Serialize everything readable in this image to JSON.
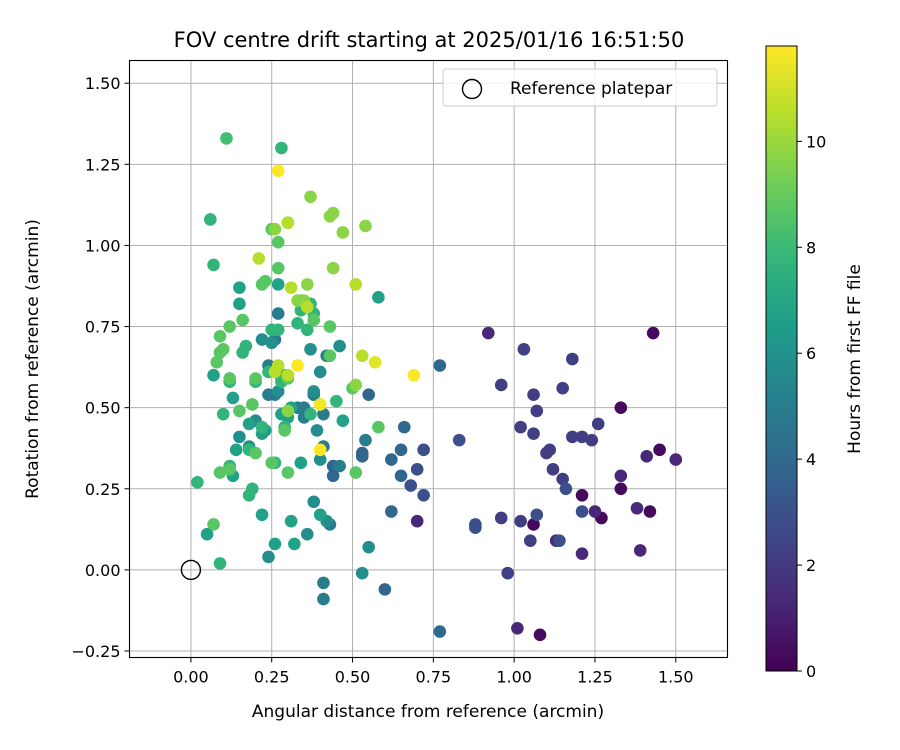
{
  "chart_data": {
    "type": "scatter",
    "title": "FOV centre drift starting at 2025/01/16 16:51:50",
    "xlabel": "Angular distance from reference (arcmin)",
    "ylabel": "Rotation from reference (arcmin)",
    "xlim": [
      -0.19,
      1.66
    ],
    "ylim": [
      -0.27,
      1.57
    ],
    "xticks": [
      "0.00",
      "0.25",
      "0.50",
      "0.75",
      "1.00",
      "1.25",
      "1.50"
    ],
    "yticks": [
      "−0.25",
      "0.00",
      "0.25",
      "0.50",
      "0.75",
      "1.00",
      "1.25",
      "1.50"
    ],
    "grid": true,
    "legend": {
      "position": "top-right",
      "label": "Reference platepar"
    },
    "reference_point": {
      "x": 0.0,
      "y": 0.0
    },
    "colorbar": {
      "label": "Hours from first FF file",
      "colormap": "viridis",
      "range": [
        0,
        11.8
      ],
      "ticks": [
        "0",
        "2",
        "4",
        "6",
        "8",
        "10"
      ]
    },
    "colors": [
      "#440154",
      "#482878",
      "#3e4989",
      "#31688e",
      "#26828e",
      "#1f9e89",
      "#35b779",
      "#6ece58",
      "#b5de2b",
      "#fde725"
    ],
    "points": [
      [
        1.45,
        0.37,
        0.3
      ],
      [
        1.43,
        0.73,
        0.3
      ],
      [
        1.42,
        0.18,
        0.3
      ],
      [
        1.33,
        0.5,
        0.3
      ],
      [
        1.33,
        0.25,
        0.3
      ],
      [
        1.27,
        0.16,
        0.3
      ],
      [
        1.21,
        0.23,
        0.3
      ],
      [
        1.06,
        0.14,
        0.3
      ],
      [
        1.08,
        -0.2,
        0.3
      ],
      [
        1.5,
        0.34,
        1.3
      ],
      [
        1.41,
        0.35,
        1.3
      ],
      [
        1.39,
        0.06,
        1.3
      ],
      [
        1.38,
        0.19,
        1.3
      ],
      [
        1.33,
        0.29,
        1.3
      ],
      [
        1.25,
        0.18,
        1.3
      ],
      [
        1.21,
        0.05,
        1.3
      ],
      [
        1.13,
        0.09,
        1.3
      ],
      [
        1.01,
        -0.18,
        1.3
      ],
      [
        0.92,
        0.73,
        1.3
      ],
      [
        0.7,
        0.15,
        1.3
      ],
      [
        1.26,
        0.45,
        2.2
      ],
      [
        1.24,
        0.4,
        2.2
      ],
      [
        1.21,
        0.41,
        2.2
      ],
      [
        1.18,
        0.41,
        2.2
      ],
      [
        1.18,
        0.65,
        2.2
      ],
      [
        1.15,
        0.56,
        2.2
      ],
      [
        1.15,
        0.28,
        2.2
      ],
      [
        1.12,
        0.31,
        2.2
      ],
      [
        1.1,
        0.36,
        2.2
      ],
      [
        1.11,
        0.37,
        2.2
      ],
      [
        1.07,
        0.49,
        2.2
      ],
      [
        1.06,
        0.54,
        2.2
      ],
      [
        1.06,
        0.42,
        2.2
      ],
      [
        1.03,
        0.68,
        2.2
      ],
      [
        1.02,
        0.44,
        2.2
      ],
      [
        1.02,
        0.15,
        2.2
      ],
      [
        0.96,
        0.57,
        2.2
      ],
      [
        0.96,
        0.16,
        2.2
      ],
      [
        0.98,
        -0.01,
        2.2
      ],
      [
        1.05,
        0.09,
        2.2
      ],
      [
        1.21,
        0.18,
        2.9
      ],
      [
        1.16,
        0.25,
        2.9
      ],
      [
        1.14,
        0.09,
        2.9
      ],
      [
        1.07,
        0.17,
        2.9
      ],
      [
        0.88,
        0.14,
        2.9
      ],
      [
        0.88,
        0.13,
        2.9
      ],
      [
        0.83,
        0.4,
        2.9
      ],
      [
        0.72,
        0.23,
        2.9
      ],
      [
        0.72,
        0.37,
        2.9
      ],
      [
        0.7,
        0.31,
        2.9
      ],
      [
        0.68,
        0.26,
        2.9
      ],
      [
        0.77,
        0.63,
        3.9
      ],
      [
        0.66,
        0.44,
        3.9
      ],
      [
        0.65,
        0.37,
        3.9
      ],
      [
        0.65,
        0.29,
        3.9
      ],
      [
        0.62,
        0.34,
        3.9
      ],
      [
        0.62,
        0.18,
        3.9
      ],
      [
        0.55,
        0.54,
        3.9
      ],
      [
        0.53,
        0.36,
        3.9
      ],
      [
        0.53,
        0.35,
        3.9
      ],
      [
        0.44,
        0.29,
        3.9
      ],
      [
        0.44,
        0.32,
        3.9
      ],
      [
        0.77,
        -0.19,
        3.9
      ],
      [
        0.6,
        -0.06,
        3.9
      ],
      [
        0.54,
        0.4,
        4.9
      ],
      [
        0.46,
        0.32,
        4.9
      ],
      [
        0.41,
        0.38,
        4.9
      ],
      [
        0.42,
        0.66,
        4.9
      ],
      [
        0.41,
        0.48,
        4.9
      ],
      [
        0.38,
        0.54,
        4.9
      ],
      [
        0.35,
        0.5,
        4.9
      ],
      [
        0.35,
        0.47,
        4.9
      ],
      [
        0.33,
        0.5,
        4.9
      ],
      [
        0.27,
        0.79,
        4.9
      ],
      [
        0.26,
        0.71,
        4.9
      ],
      [
        0.26,
        0.54,
        4.9
      ],
      [
        0.24,
        0.54,
        4.9
      ],
      [
        0.24,
        0.63,
        4.9
      ],
      [
        0.41,
        -0.04,
        4.9
      ],
      [
        0.41,
        -0.09,
        4.9
      ],
      [
        0.43,
        0.14,
        4.9
      ],
      [
        0.46,
        0.69,
        5.8
      ],
      [
        0.4,
        0.61,
        5.8
      ],
      [
        0.37,
        0.68,
        5.8
      ],
      [
        0.38,
        0.55,
        5.8
      ],
      [
        0.39,
        0.43,
        5.8
      ],
      [
        0.4,
        0.34,
        5.8
      ],
      [
        0.28,
        0.59,
        5.8
      ],
      [
        0.27,
        0.55,
        5.8
      ],
      [
        0.25,
        0.7,
        5.8
      ],
      [
        0.22,
        0.71,
        5.8
      ],
      [
        0.2,
        0.46,
        5.8
      ],
      [
        0.18,
        0.38,
        5.8
      ],
      [
        0.15,
        0.41,
        5.8
      ],
      [
        0.38,
        0.21,
        5.8
      ],
      [
        0.36,
        0.11,
        5.8
      ],
      [
        0.42,
        0.15,
        5.8
      ],
      [
        0.24,
        0.04,
        5.8
      ],
      [
        0.53,
        -0.01,
        5.8
      ],
      [
        0.55,
        0.07,
        5.8
      ],
      [
        0.58,
        0.84,
        6.7
      ],
      [
        0.47,
        0.46,
        6.7
      ],
      [
        0.4,
        0.17,
        6.7
      ],
      [
        0.34,
        0.33,
        6.7
      ],
      [
        0.31,
        0.5,
        6.7
      ],
      [
        0.3,
        0.47,
        6.7
      ],
      [
        0.28,
        0.48,
        6.7
      ],
      [
        0.27,
        0.88,
        6.7
      ],
      [
        0.23,
        0.43,
        6.7
      ],
      [
        0.22,
        0.42,
        6.7
      ],
      [
        0.18,
        0.45,
        6.7
      ],
      [
        0.15,
        0.87,
        6.7
      ],
      [
        0.15,
        0.82,
        6.7
      ],
      [
        0.14,
        0.37,
        6.7
      ],
      [
        0.13,
        0.53,
        6.7
      ],
      [
        0.13,
        0.29,
        6.7
      ],
      [
        0.07,
        0.6,
        6.7
      ],
      [
        0.05,
        0.11,
        6.7
      ],
      [
        0.26,
        0.08,
        6.7
      ],
      [
        0.22,
        0.17,
        6.7
      ],
      [
        0.31,
        0.15,
        6.7
      ],
      [
        0.32,
        0.08,
        6.7
      ],
      [
        0.45,
        0.52,
        7.7
      ],
      [
        0.38,
        0.79,
        7.7
      ],
      [
        0.37,
        0.82,
        7.7
      ],
      [
        0.37,
        0.48,
        7.7
      ],
      [
        0.36,
        0.74,
        7.7
      ],
      [
        0.34,
        0.8,
        7.7
      ],
      [
        0.33,
        0.76,
        7.7
      ],
      [
        0.29,
        0.6,
        7.7
      ],
      [
        0.29,
        0.44,
        7.7
      ],
      [
        0.28,
        1.3,
        7.7
      ],
      [
        0.28,
        0.58,
        7.7
      ],
      [
        0.27,
        0.74,
        7.7
      ],
      [
        0.26,
        0.33,
        7.7
      ],
      [
        0.25,
        0.74,
        7.7
      ],
      [
        0.24,
        0.61,
        7.7
      ],
      [
        0.22,
        0.44,
        7.7
      ],
      [
        0.2,
        0.58,
        7.7
      ],
      [
        0.19,
        0.25,
        7.7
      ],
      [
        0.18,
        0.37,
        7.7
      ],
      [
        0.18,
        0.23,
        7.7
      ],
      [
        0.17,
        0.69,
        7.7
      ],
      [
        0.16,
        0.67,
        7.7
      ],
      [
        0.12,
        0.58,
        7.7
      ],
      [
        0.12,
        0.32,
        7.7
      ],
      [
        0.1,
        0.48,
        7.7
      ],
      [
        0.07,
        0.94,
        7.7
      ],
      [
        0.06,
        1.08,
        7.7
      ],
      [
        0.02,
        0.27,
        7.7
      ],
      [
        0.09,
        0.02,
        7.7
      ],
      [
        0.11,
        1.33,
        8.2
      ],
      [
        0.5,
        0.56,
        8.7
      ],
      [
        0.43,
        0.75,
        8.7
      ],
      [
        0.43,
        0.66,
        8.7
      ],
      [
        0.4,
        0.51,
        8.7
      ],
      [
        0.38,
        0.77,
        8.7
      ],
      [
        0.34,
        0.83,
        8.7
      ],
      [
        0.3,
        1.07,
        8.7
      ],
      [
        0.3,
        0.59,
        8.7
      ],
      [
        0.29,
        0.43,
        8.7
      ],
      [
        0.27,
        0.93,
        8.7
      ],
      [
        0.27,
        1.01,
        8.7
      ],
      [
        0.25,
        1.05,
        8.7
      ],
      [
        0.25,
        0.33,
        8.7
      ],
      [
        0.22,
        0.88,
        8.7
      ],
      [
        0.2,
        0.59,
        8.7
      ],
      [
        0.2,
        0.36,
        8.7
      ],
      [
        0.19,
        0.51,
        8.7
      ],
      [
        0.16,
        0.77,
        8.7
      ],
      [
        0.15,
        0.49,
        8.7
      ],
      [
        0.12,
        0.75,
        8.7
      ],
      [
        0.12,
        0.59,
        8.7
      ],
      [
        0.1,
        0.68,
        8.7
      ],
      [
        0.09,
        0.72,
        8.7
      ],
      [
        0.08,
        0.64,
        8.7
      ],
      [
        0.09,
        0.67,
        8.7
      ],
      [
        0.09,
        0.3,
        8.7
      ],
      [
        0.07,
        0.14,
        8.7
      ],
      [
        0.58,
        0.44,
        8.7
      ],
      [
        0.51,
        0.3,
        8.7
      ],
      [
        0.3,
        0.3,
        8.7
      ],
      [
        0.12,
        0.31,
        8.7
      ],
      [
        0.23,
        0.89,
        8.7
      ],
      [
        0.54,
        1.06,
        9.7
      ],
      [
        0.51,
        0.57,
        9.7
      ],
      [
        0.47,
        1.04,
        9.7
      ],
      [
        0.44,
        0.93,
        9.7
      ],
      [
        0.44,
        1.1,
        9.7
      ],
      [
        0.43,
        1.09,
        9.7
      ],
      [
        0.37,
        1.15,
        9.7
      ],
      [
        0.36,
        0.88,
        9.7
      ],
      [
        0.35,
        0.83,
        9.7
      ],
      [
        0.33,
        0.83,
        9.7
      ],
      [
        0.3,
        0.49,
        9.7
      ],
      [
        0.26,
        1.05,
        9.7
      ],
      [
        0.51,
        0.88,
        10.5
      ],
      [
        0.53,
        0.66,
        10.5
      ],
      [
        0.3,
        1.07,
        10.5
      ],
      [
        0.31,
        0.87,
        10.5
      ],
      [
        0.3,
        0.6,
        10.5
      ],
      [
        0.36,
        0.81,
        10.5
      ],
      [
        0.26,
        0.61,
        10.5
      ],
      [
        0.21,
        0.96,
        10.5
      ],
      [
        0.27,
        0.63,
        10.5
      ],
      [
        0.57,
        0.64,
        11.3
      ],
      [
        0.69,
        0.6,
        11.8
      ],
      [
        0.4,
        0.51,
        11.6
      ],
      [
        0.4,
        0.37,
        11.8
      ],
      [
        0.33,
        0.63,
        11.8
      ],
      [
        0.27,
        1.23,
        11.8
      ]
    ]
  }
}
